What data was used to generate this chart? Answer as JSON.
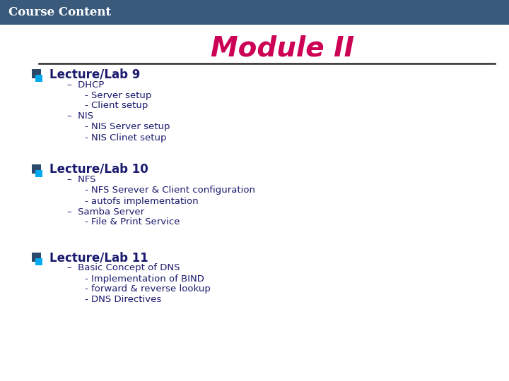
{
  "header_text": "Course Content",
  "header_bg": "#3a5a7c",
  "header_text_color": "#ffffff",
  "slide_bg": "#ffffff",
  "title": "Module II",
  "title_color": "#cc0055",
  "line_color": "#2a2a2a",
  "bullet_color1": "#2e4a6b",
  "bullet_color2": "#00aaee",
  "content": [
    {
      "label": "Lecture/Lab 9",
      "items": [
        {
          "level": 1,
          "text": "–  DHCP"
        },
        {
          "level": 2,
          "text": "- Server setup"
        },
        {
          "level": 2,
          "text": "- Client setup"
        },
        {
          "level": 1,
          "text": "–  NIS"
        },
        {
          "level": 2,
          "text": "- NIS Server setup"
        },
        {
          "level": 2,
          "text": "- NIS Clinet setup"
        }
      ]
    },
    {
      "label": "Lecture/Lab 10",
      "items": [
        {
          "level": 1,
          "text": "–  NFS"
        },
        {
          "level": 2,
          "text": "- NFS Serever & Client configuration"
        },
        {
          "level": 2,
          "text": "- autofs implementation"
        },
        {
          "level": 1,
          "text": "–  Samba Server"
        },
        {
          "level": 2,
          "text": "- File & Print Service"
        }
      ]
    },
    {
      "label": "Lecture/Lab 11",
      "items": [
        {
          "level": 1,
          "text": "–  Basic Concept of DNS"
        },
        {
          "level": 2,
          "text": "- Implementation of BIND"
        },
        {
          "level": 2,
          "text": "- forward & reverse lookup"
        },
        {
          "level": 2,
          "text": "- DNS Directives"
        }
      ]
    }
  ],
  "text_color": "#1a1a6e",
  "label_fontsize": 12,
  "item_fontsize": 9.5,
  "title_fontsize": 28,
  "header_fontsize": 12
}
